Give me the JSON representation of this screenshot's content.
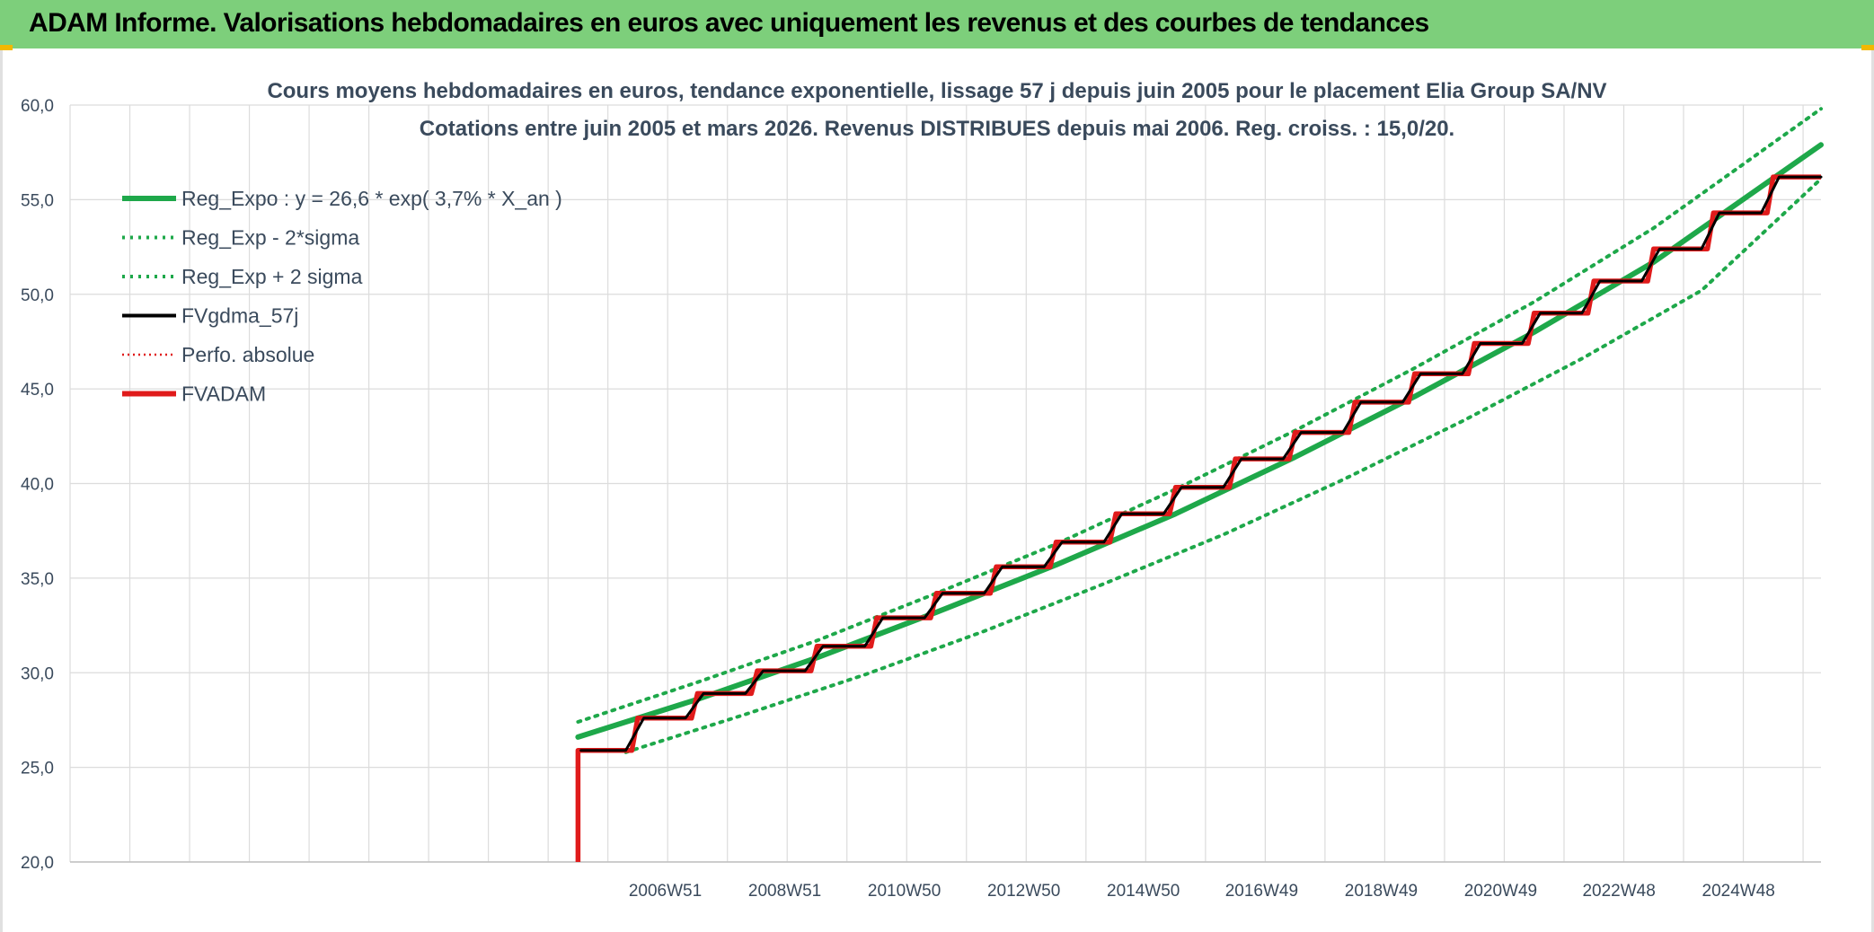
{
  "header": {
    "title": "ADAM Informe. Valorisations hebdomadaires en euros avec uniquement les revenus et des courbes de tendances"
  },
  "colors": {
    "banner": "#7dcf7b",
    "accent": "#f2b800",
    "reg_expo": "#1ea84a",
    "reg_band": "#1ea84a",
    "fvgdma": "#000000",
    "perfo": "#e01b1b",
    "fvadam": "#e01b1b",
    "grid": "#dcdcdc"
  },
  "chart_data": {
    "type": "line",
    "title": "Cours moyens hebdomadaires en euros, tendance exponentielle, lissage 57 j depuis juin 2005 pour le placement Elia Group SA/NV",
    "subtitle": "Cotations entre juin 2005 et mars 2026. Revenus DISTRIBUES depuis mai 2006. Reg. croiss. : 15,0/20.",
    "xlabel": "",
    "ylabel": "",
    "ylim": [
      20,
      60
    ],
    "yticks": [
      "60,0",
      "55,0",
      "50,0",
      "45,0",
      "40,0",
      "35,0",
      "30,0",
      "25,0",
      "20,0"
    ],
    "xticks": [
      "2006W51",
      "2008W51",
      "2010W50",
      "2012W50",
      "2014W50",
      "2016W49",
      "2018W49",
      "2020W49",
      "2022W48",
      "2024W48"
    ],
    "xtick_years": [
      2006.96,
      2008.96,
      2010.96,
      2012.96,
      2014.96,
      2016.94,
      2018.94,
      2020.94,
      2022.92,
      2024.92
    ],
    "xlim": [
      1997.0,
      2026.3
    ],
    "grid": true,
    "legend_position": "top-left",
    "legend": [
      {
        "label": "Reg_Expo : y = 26,6 * exp( 3,7% *  X_an )",
        "style": "solid-thick",
        "color": "#1ea84a"
      },
      {
        "label": "Reg_Exp - 2*sigma",
        "style": "dotted",
        "color": "#1ea84a"
      },
      {
        "label": "Reg_Exp + 2 sigma",
        "style": "dotted",
        "color": "#1ea84a"
      },
      {
        "label": "FVgdma_57j",
        "style": "solid",
        "color": "#000000"
      },
      {
        "label": "Perfo. absolue",
        "style": "dotted-thin",
        "color": "#e01b1b"
      },
      {
        "label": "FVADAM",
        "style": "solid-thick",
        "color": "#e01b1b"
      }
    ],
    "series": [
      {
        "name": "Reg_Expo : y = 26,6 * exp( 3,7% *  X_an )",
        "x": [
          2005.5,
          2007.5,
          2009.5,
          2011.5,
          2013.5,
          2015.5,
          2017.5,
          2019.5,
          2021.5,
          2023.5,
          2026.3
        ],
        "values": [
          26.6,
          28.6,
          30.8,
          33.2,
          35.7,
          38.4,
          41.4,
          44.6,
          48.0,
          51.7,
          57.9
        ]
      },
      {
        "name": "Reg_Exp - 2*sigma",
        "x": [
          2006.3,
          2008.3,
          2010.3,
          2012.3,
          2014.3,
          2016.3,
          2018.3,
          2020.3,
          2022.3,
          2024.3,
          2026.3
        ],
        "values": [
          25.8,
          27.8,
          29.9,
          32.2,
          34.7,
          37.3,
          40.2,
          43.3,
          46.6,
          50.2,
          56.1
        ]
      },
      {
        "name": "Reg_Exp + 2 sigma",
        "x": [
          2005.5,
          2007.5,
          2009.5,
          2011.5,
          2013.5,
          2015.5,
          2017.5,
          2019.5,
          2021.5,
          2023.5,
          2026.3
        ],
        "values": [
          27.4,
          29.5,
          31.7,
          34.2,
          36.8,
          39.7,
          42.8,
          46.1,
          49.6,
          53.5,
          59.8
        ]
      },
      {
        "name": "FVADAM",
        "x": [
          2005.5,
          2005.5,
          2006.4,
          2006.5,
          2007.4,
          2007.5,
          2008.4,
          2008.5,
          2009.4,
          2009.5,
          2010.4,
          2010.5,
          2011.4,
          2011.5,
          2012.4,
          2012.5,
          2013.4,
          2013.5,
          2014.4,
          2014.5,
          2015.4,
          2015.5,
          2016.4,
          2016.5,
          2017.4,
          2017.5,
          2018.4,
          2018.5,
          2019.4,
          2019.5,
          2020.4,
          2020.5,
          2021.4,
          2021.5,
          2022.4,
          2022.5,
          2023.4,
          2023.5,
          2024.4,
          2024.5,
          2025.4,
          2025.5,
          2026.3
        ],
        "values": [
          20.0,
          25.9,
          25.9,
          27.6,
          27.6,
          28.9,
          28.9,
          30.1,
          30.1,
          31.4,
          31.4,
          32.9,
          32.9,
          34.2,
          34.2,
          35.6,
          35.6,
          36.9,
          36.9,
          38.4,
          38.4,
          39.8,
          39.8,
          41.3,
          41.3,
          42.7,
          42.7,
          44.3,
          44.3,
          45.8,
          45.8,
          47.4,
          47.4,
          49.0,
          49.0,
          50.7,
          50.7,
          52.4,
          52.4,
          54.3,
          54.3,
          56.2,
          56.2
        ]
      },
      {
        "name": "FVgdma_57j",
        "x": [
          2005.55,
          2006.3,
          2006.6,
          2007.3,
          2007.6,
          2008.3,
          2008.6,
          2009.3,
          2009.6,
          2010.3,
          2010.6,
          2011.3,
          2011.6,
          2012.3,
          2012.6,
          2013.3,
          2013.6,
          2014.3,
          2014.6,
          2015.3,
          2015.6,
          2016.3,
          2016.6,
          2017.3,
          2017.6,
          2018.3,
          2018.6,
          2019.3,
          2019.6,
          2020.3,
          2020.6,
          2021.3,
          2021.6,
          2022.3,
          2022.6,
          2023.3,
          2023.6,
          2024.3,
          2024.6,
          2025.3,
          2025.6,
          2026.3
        ],
        "values": [
          25.9,
          25.9,
          27.6,
          27.6,
          28.9,
          28.9,
          30.1,
          30.1,
          31.4,
          31.4,
          32.9,
          32.9,
          34.2,
          34.2,
          35.6,
          35.6,
          36.9,
          36.9,
          38.4,
          38.4,
          39.8,
          39.8,
          41.3,
          41.3,
          42.7,
          42.7,
          44.3,
          44.3,
          45.8,
          45.8,
          47.4,
          47.4,
          49.0,
          49.0,
          50.7,
          50.7,
          52.4,
          52.4,
          54.3,
          54.3,
          56.2,
          56.2
        ]
      }
    ]
  }
}
